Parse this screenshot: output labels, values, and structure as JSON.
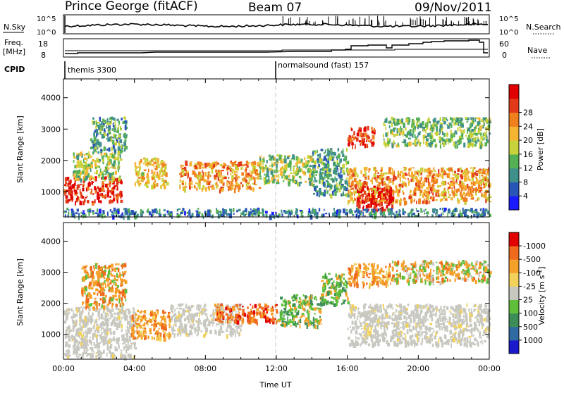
{
  "header": {
    "station": "Prince George (fitACF)",
    "beam": "Beam 07",
    "date": "09/Nov/2011"
  },
  "strips": {
    "nsky_label": "N.Sky",
    "nsky_ticks": [
      "10^5",
      "10^0"
    ],
    "nsearch_label": "N.Search",
    "nsearch_ticks": [
      "10^5",
      "10^0"
    ],
    "freq_label_1": "Freq.",
    "freq_label_2": "[MHz]",
    "freq_ticks": [
      "18",
      "8"
    ],
    "nave_label": "Nave",
    "nave_ticks": [
      "60",
      "0"
    ],
    "cpid_label": "CPID",
    "cpid_segments": [
      {
        "start_hour": 0,
        "name": "themis 3300"
      },
      {
        "start_hour": 12,
        "name": "normalsound (fast) 157"
      }
    ]
  },
  "chart_data": [
    {
      "type": "heatmap",
      "panel": "power",
      "xlabel": "",
      "ylabel": "Slant Range [km]",
      "xlim_hours": [
        0,
        24
      ],
      "ylim_km": [
        200,
        4600
      ],
      "yticks": [
        1000,
        2000,
        3000,
        4000
      ],
      "colorbar": {
        "label": "Power [dB]",
        "ticks": [
          "4",
          "8",
          "12",
          "16",
          "20",
          "24",
          "28"
        ],
        "colors": [
          "#1a1aff",
          "#2a55b8",
          "#3f8f8a",
          "#55b055",
          "#c8d23a",
          "#f5b533",
          "#f07f1e",
          "#e23a18",
          "#e00000"
        ]
      },
      "regions": [
        {
          "t0": 0.0,
          "t1": 3.3,
          "r0": 700,
          "r1": 1500,
          "level": 26
        },
        {
          "t0": 0.5,
          "t1": 3.2,
          "r0": 1400,
          "r1": 2300,
          "level": 14
        },
        {
          "t0": 1.5,
          "t1": 3.5,
          "r0": 2300,
          "r1": 3400,
          "level": 10
        },
        {
          "t0": 4.0,
          "t1": 5.8,
          "r0": 1200,
          "r1": 2100,
          "level": 18
        },
        {
          "t0": 6.5,
          "t1": 11.0,
          "r0": 1100,
          "r1": 2000,
          "level": 20
        },
        {
          "t0": 11.0,
          "t1": 14.0,
          "r0": 1300,
          "r1": 2200,
          "level": 14
        },
        {
          "t0": 14.0,
          "t1": 16.0,
          "r0": 900,
          "r1": 2400,
          "level": 10
        },
        {
          "t0": 16.0,
          "t1": 17.5,
          "r0": 2500,
          "r1": 3100,
          "level": 26
        },
        {
          "t0": 16.0,
          "t1": 24.0,
          "r0": 700,
          "r1": 1800,
          "level": 20
        },
        {
          "t0": 16.5,
          "t1": 18.5,
          "r0": 400,
          "r1": 1200,
          "level": 28
        },
        {
          "t0": 18.0,
          "t1": 24.0,
          "r0": 2500,
          "r1": 3400,
          "level": 12
        },
        {
          "t0": 0.0,
          "t1": 24.0,
          "r0": 250,
          "r1": 500,
          "level": 8
        }
      ]
    },
    {
      "type": "heatmap",
      "panel": "velocity",
      "xlabel": "Time UT",
      "ylabel": "Slant Range [km]",
      "xlim_hours": [
        0,
        24
      ],
      "ylim_km": [
        200,
        4600
      ],
      "yticks": [
        1000,
        2000,
        3000,
        4000
      ],
      "xticks": [
        "00:00",
        "04:00",
        "08:00",
        "12:00",
        "16:00",
        "20:00",
        "00:00"
      ],
      "colorbar": {
        "label": "Velocity [m s^-1]",
        "ticks": [
          "1000",
          "500",
          "100",
          "25",
          "-25",
          "-100",
          "-500",
          "-1000"
        ],
        "colors": [
          "#1a1acc",
          "#2f6aa3",
          "#3c8d57",
          "#5fbf3a",
          "#c8c8c0",
          "#f2d25a",
          "#f5a028",
          "#ef6a1c",
          "#e00000"
        ]
      },
      "regions": [
        {
          "t0": 0.0,
          "t1": 4.0,
          "r0": 300,
          "r1": 1900,
          "class": "ground"
        },
        {
          "t0": 1.0,
          "t1": 3.5,
          "r0": 1900,
          "r1": 3300,
          "class": "-100"
        },
        {
          "t0": 3.8,
          "t1": 6.0,
          "r0": 900,
          "r1": 1800,
          "class": "-250"
        },
        {
          "t0": 6.0,
          "t1": 10.0,
          "r0": 1000,
          "r1": 2000,
          "class": "ground"
        },
        {
          "t0": 8.5,
          "t1": 12.0,
          "r0": 1400,
          "r1": 2000,
          "class": "-500"
        },
        {
          "t0": 12.0,
          "t1": 14.5,
          "r0": 1300,
          "r1": 2300,
          "class": "100"
        },
        {
          "t0": 14.5,
          "t1": 16.0,
          "r0": 2000,
          "r1": 3000,
          "class": "100"
        },
        {
          "t0": 16.0,
          "t1": 24.0,
          "r0": 700,
          "r1": 2000,
          "class": "ground"
        },
        {
          "t0": 16.0,
          "t1": 18.5,
          "r0": 2600,
          "r1": 3300,
          "class": "-250"
        },
        {
          "t0": 18.5,
          "t1": 24.0,
          "r0": 2700,
          "r1": 3400,
          "class": "mix"
        }
      ]
    }
  ]
}
